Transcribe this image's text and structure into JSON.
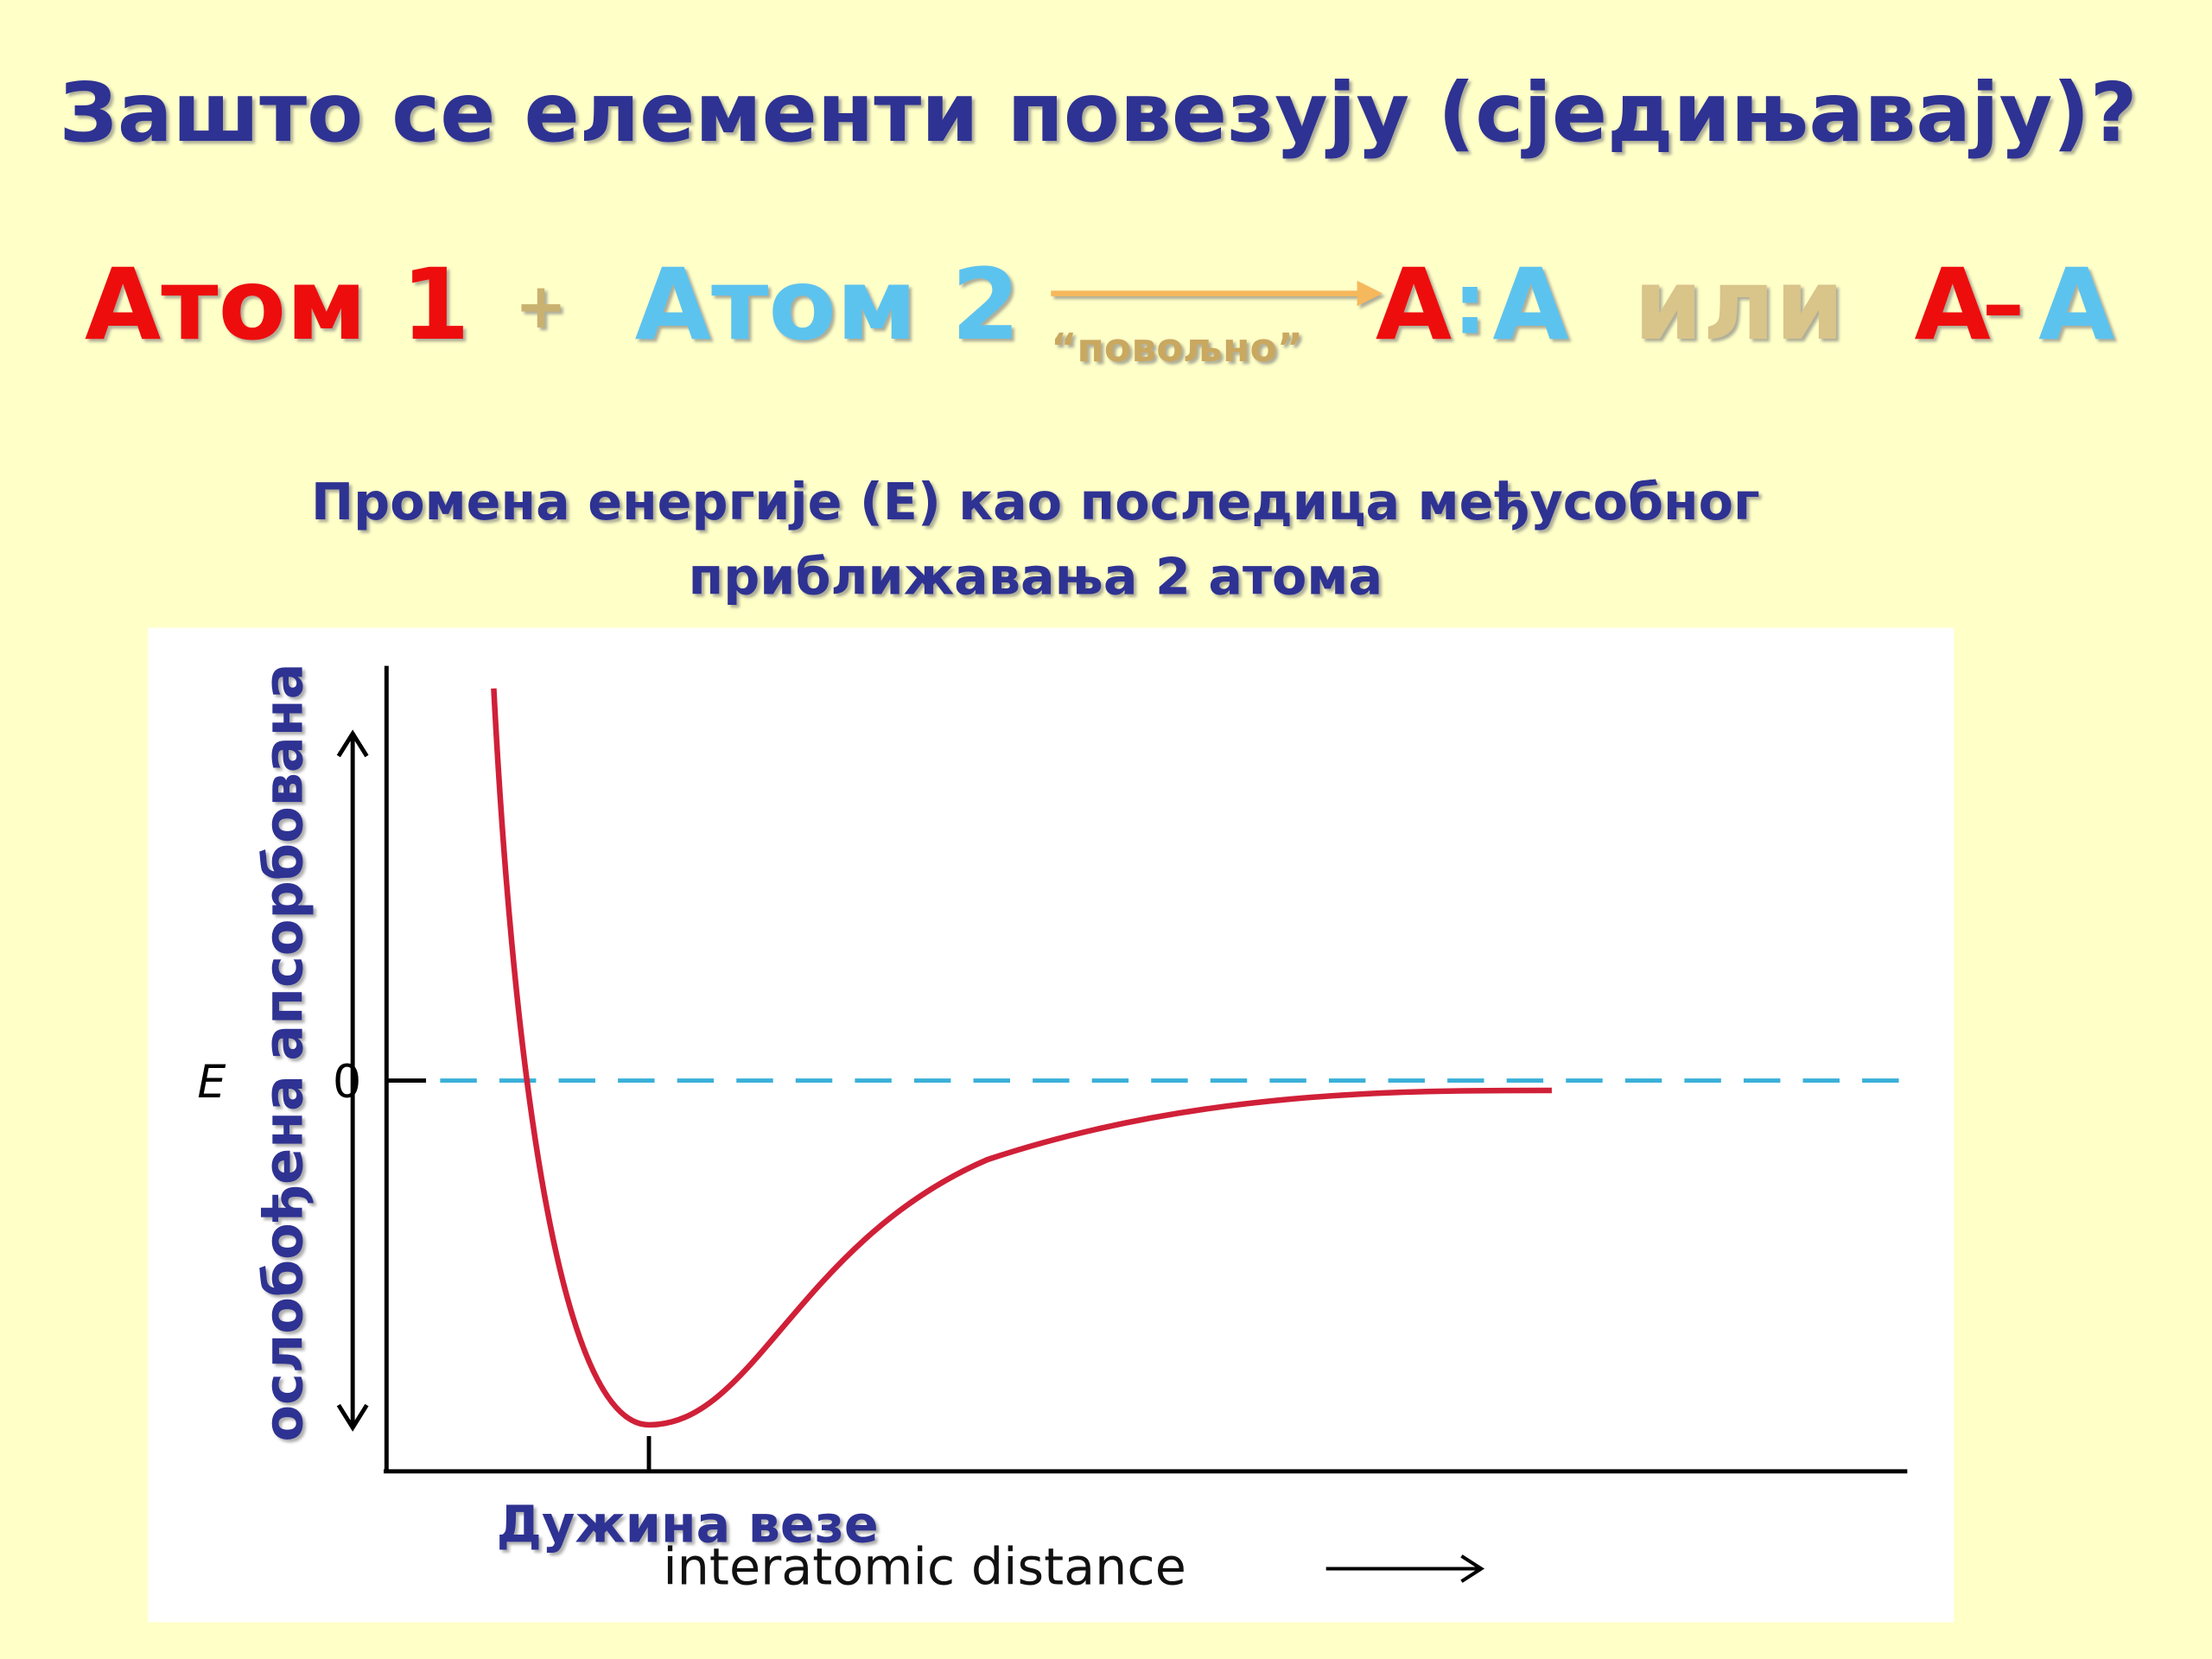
{
  "title": "Зашто се елементи повезују (сједињавају)?",
  "equation": {
    "atom1": "Атом 1",
    "plus": "+",
    "atom2": "Атом 2",
    "condition": "“повољно”",
    "product1": [
      "А",
      ":",
      "А"
    ],
    "or": "или",
    "product2": [
      "А",
      "–",
      "А"
    ]
  },
  "subtitle": [
    "Промена енергије (Е) као последица међусобног",
    "приближавања 2 атома"
  ],
  "diagram": {
    "y_label_low": "ослобођена",
    "y_label_high": "апсорбована",
    "y_axis": "E",
    "zero": "0",
    "bond_length": "Дужина везе",
    "x_axis": "interatomic distance"
  }
}
